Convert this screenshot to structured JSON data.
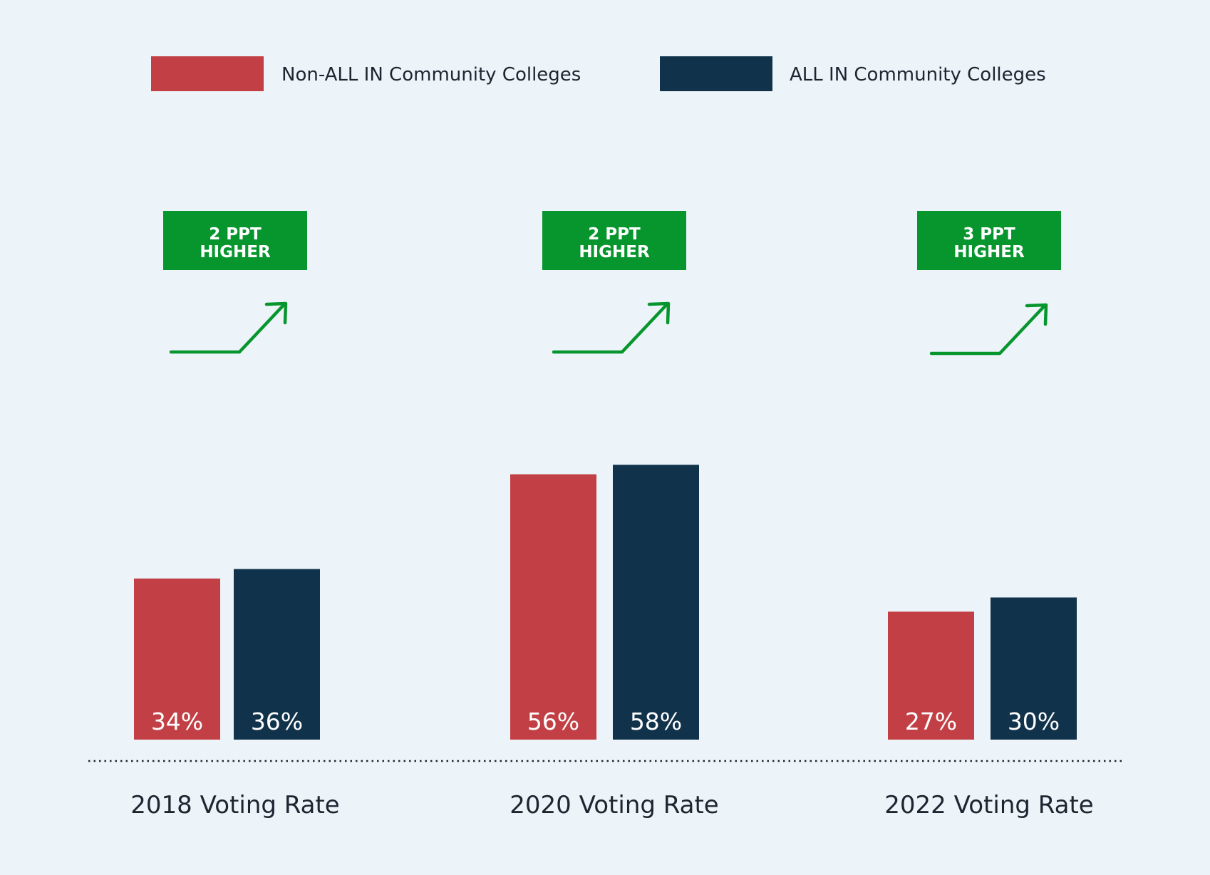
{
  "chart_data": {
    "type": "bar",
    "categories": [
      "2018 Voting Rate",
      "2020 Voting Rate",
      "2022 Voting Rate"
    ],
    "series": [
      {
        "name": "Non-ALL IN Community Colleges",
        "values": [
          34,
          56,
          27
        ],
        "labels": [
          "34%",
          "56%",
          "27%"
        ],
        "color": "#c24045"
      },
      {
        "name": "ALL IN Community Colleges",
        "values": [
          36,
          58,
          30
        ],
        "labels": [
          "36%",
          "58%",
          "30%"
        ],
        "color": "#11324b"
      }
    ],
    "annotations": [
      {
        "line1": "2 PPT",
        "line2": "HIGHER"
      },
      {
        "line1": "2 PPT",
        "line2": "HIGHER"
      },
      {
        "line1": "3 PPT",
        "line2": "HIGHER"
      }
    ],
    "annotation_color": "#07962d",
    "title": "",
    "xlabel": "",
    "ylabel": "",
    "legend_position": "top",
    "grid": false,
    "baseline_style": "dotted"
  }
}
